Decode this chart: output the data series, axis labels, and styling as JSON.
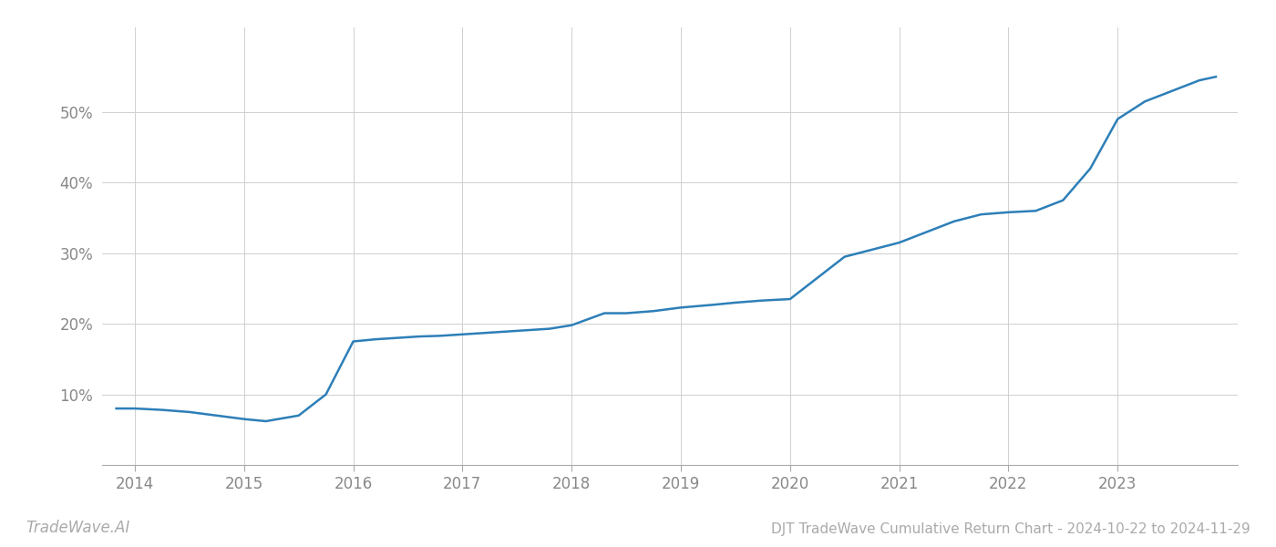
{
  "x_years": [
    2013.83,
    2014.0,
    2014.25,
    2014.5,
    2014.75,
    2015.0,
    2015.2,
    2015.5,
    2015.75,
    2016.0,
    2016.2,
    2016.4,
    2016.6,
    2016.8,
    2017.0,
    2017.2,
    2017.5,
    2017.8,
    2018.0,
    2018.3,
    2018.5,
    2018.75,
    2019.0,
    2019.3,
    2019.5,
    2019.75,
    2020.0,
    2020.25,
    2020.5,
    2020.75,
    2021.0,
    2021.25,
    2021.5,
    2021.75,
    2022.0,
    2022.25,
    2022.5,
    2022.75,
    2023.0,
    2023.25,
    2023.5,
    2023.75,
    2023.9
  ],
  "y_values": [
    8.0,
    8.0,
    7.8,
    7.5,
    7.0,
    6.5,
    6.2,
    7.0,
    10.0,
    17.5,
    17.8,
    18.0,
    18.2,
    18.3,
    18.5,
    18.7,
    19.0,
    19.3,
    19.8,
    21.5,
    21.5,
    21.8,
    22.3,
    22.7,
    23.0,
    23.3,
    23.5,
    26.5,
    29.5,
    30.5,
    31.5,
    33.0,
    34.5,
    35.5,
    35.8,
    36.0,
    37.5,
    42.0,
    49.0,
    51.5,
    53.0,
    54.5,
    55.0
  ],
  "line_color": "#2d7fb8",
  "line_width": 1.8,
  "background_color": "#ffffff",
  "grid_color": "#d0d0d0",
  "title": "DJT TradeWave Cumulative Return Chart - 2024-10-22 to 2024-11-29",
  "watermark": "TradeWave.AI",
  "x_ticks": [
    2014,
    2015,
    2016,
    2017,
    2018,
    2019,
    2020,
    2021,
    2022,
    2023
  ],
  "y_tick_vals": [
    0,
    10,
    20,
    30,
    40,
    50
  ],
  "y_tick_labels": [
    "",
    "10%",
    "20%",
    "30%",
    "40%",
    "50%"
  ],
  "xlim": [
    2013.7,
    2024.1
  ],
  "ylim": [
    0,
    62
  ],
  "title_fontsize": 11,
  "tick_fontsize": 12,
  "watermark_fontsize": 12
}
